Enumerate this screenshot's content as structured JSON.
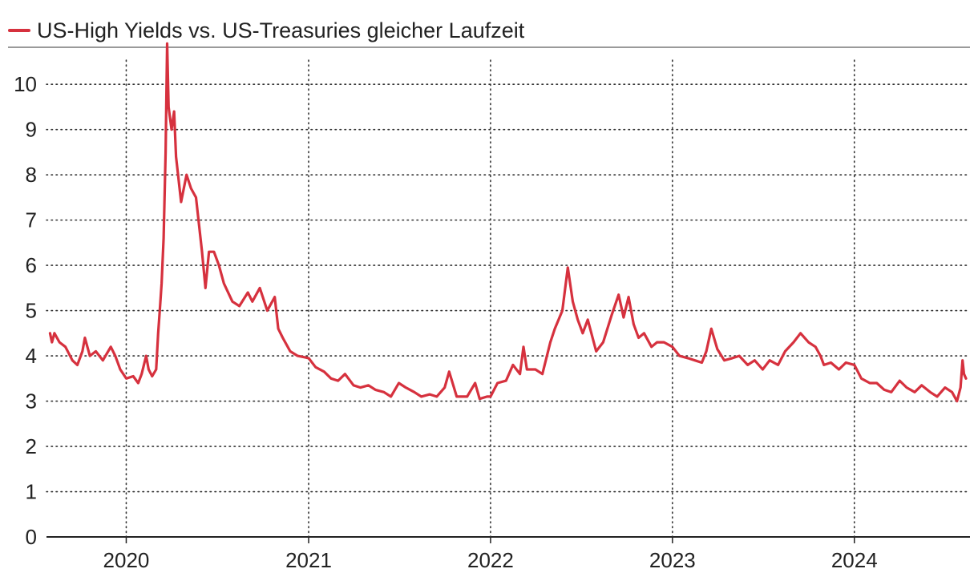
{
  "legend": {
    "label": "US-High Yields vs. US-Treasuries gleicher Laufzeit",
    "color": "#d6313e"
  },
  "chart_data": {
    "type": "line",
    "title": "",
    "xlabel": "",
    "ylabel": "",
    "ylim": [
      0,
      10.8
    ],
    "xlim": [
      "2019-07-25",
      "2024-08-20"
    ],
    "yticks": [
      0,
      1,
      2,
      3,
      4,
      5,
      6,
      7,
      8,
      9,
      10
    ],
    "yticklabels": [
      "0",
      "1",
      "2",
      "3",
      "4",
      "5",
      "6",
      "7",
      "8",
      "9",
      "10"
    ],
    "xticks": [
      "2020-01-01",
      "2021-01-01",
      "2022-01-01",
      "2023-01-01",
      "2024-01-01"
    ],
    "xticklabels": [
      "2020",
      "2021",
      "2022",
      "2023",
      "2024"
    ],
    "grid": "dotted",
    "legend_position": "top-left",
    "series": [
      {
        "name": "US-High Yields vs. US-Treasuries gleicher Laufzeit",
        "color": "#d6313e",
        "x": [
          "2019-08-01",
          "2019-08-05",
          "2019-08-10",
          "2019-08-20",
          "2019-09-01",
          "2019-09-15",
          "2019-09-25",
          "2019-10-05",
          "2019-10-10",
          "2019-10-20",
          "2019-11-01",
          "2019-11-15",
          "2019-12-01",
          "2019-12-10",
          "2019-12-20",
          "2020-01-01",
          "2020-01-15",
          "2020-01-25",
          "2020-02-01",
          "2020-02-10",
          "2020-02-15",
          "2020-02-22",
          "2020-03-01",
          "2020-03-05",
          "2020-03-09",
          "2020-03-12",
          "2020-03-16",
          "2020-03-20",
          "2020-03-23",
          "2020-03-26",
          "2020-04-01",
          "2020-04-06",
          "2020-04-10",
          "2020-04-20",
          "2020-05-01",
          "2020-05-10",
          "2020-05-20",
          "2020-06-01",
          "2020-06-08",
          "2020-06-15",
          "2020-06-25",
          "2020-07-05",
          "2020-07-15",
          "2020-08-01",
          "2020-08-15",
          "2020-09-01",
          "2020-09-10",
          "2020-09-25",
          "2020-10-10",
          "2020-10-25",
          "2020-11-01",
          "2020-11-10",
          "2020-11-25",
          "2020-12-10",
          "2021-01-01",
          "2021-01-15",
          "2021-02-01",
          "2021-02-15",
          "2021-03-01",
          "2021-03-15",
          "2021-04-01",
          "2021-04-15",
          "2021-05-01",
          "2021-05-15",
          "2021-06-01",
          "2021-06-15",
          "2021-07-01",
          "2021-07-15",
          "2021-08-01",
          "2021-08-15",
          "2021-09-01",
          "2021-09-15",
          "2021-10-01",
          "2021-10-10",
          "2021-10-25",
          "2021-11-15",
          "2021-12-01",
          "2021-12-10",
          "2021-12-25",
          "2022-01-01",
          "2022-01-15",
          "2022-02-01",
          "2022-02-15",
          "2022-03-01",
          "2022-03-08",
          "2022-03-15",
          "2022-04-01",
          "2022-04-15",
          "2022-05-01",
          "2022-05-10",
          "2022-05-25",
          "2022-06-05",
          "2022-06-15",
          "2022-06-25",
          "2022-07-05",
          "2022-07-15",
          "2022-08-01",
          "2022-08-15",
          "2022-09-01",
          "2022-09-15",
          "2022-09-25",
          "2022-10-05",
          "2022-10-15",
          "2022-10-25",
          "2022-11-05",
          "2022-11-20",
          "2022-12-01",
          "2022-12-15",
          "2023-01-01",
          "2023-01-15",
          "2023-02-01",
          "2023-02-15",
          "2023-03-01",
          "2023-03-10",
          "2023-03-20",
          "2023-04-01",
          "2023-04-15",
          "2023-05-01",
          "2023-05-15",
          "2023-06-01",
          "2023-06-15",
          "2023-07-01",
          "2023-07-15",
          "2023-08-01",
          "2023-08-15",
          "2023-09-01",
          "2023-09-15",
          "2023-10-01",
          "2023-10-15",
          "2023-10-25",
          "2023-11-01",
          "2023-11-15",
          "2023-12-01",
          "2023-12-15",
          "2024-01-01",
          "2024-01-15",
          "2024-02-01",
          "2024-02-15",
          "2024-03-01",
          "2024-03-15",
          "2024-04-01",
          "2024-04-15",
          "2024-05-01",
          "2024-05-15",
          "2024-06-01",
          "2024-06-15",
          "2024-07-01",
          "2024-07-15",
          "2024-07-25",
          "2024-08-01",
          "2024-08-05",
          "2024-08-08",
          "2024-08-12"
        ],
        "y": [
          4.5,
          4.3,
          4.5,
          4.3,
          4.2,
          3.9,
          3.8,
          4.1,
          4.4,
          4.0,
          4.1,
          3.9,
          4.2,
          4.0,
          3.7,
          3.5,
          3.55,
          3.4,
          3.6,
          4.0,
          3.7,
          3.55,
          3.7,
          4.5,
          5.1,
          5.6,
          6.6,
          8.5,
          10.9,
          9.5,
          9.0,
          9.4,
          8.4,
          7.4,
          8.0,
          7.7,
          7.5,
          6.3,
          5.5,
          6.3,
          6.3,
          6.0,
          5.6,
          5.2,
          5.1,
          5.4,
          5.2,
          5.5,
          5.0,
          5.3,
          4.6,
          4.4,
          4.1,
          4.0,
          3.95,
          3.75,
          3.65,
          3.5,
          3.45,
          3.6,
          3.35,
          3.3,
          3.35,
          3.25,
          3.2,
          3.1,
          3.4,
          3.3,
          3.2,
          3.1,
          3.15,
          3.1,
          3.3,
          3.65,
          3.1,
          3.1,
          3.4,
          3.05,
          3.1,
          3.1,
          3.4,
          3.45,
          3.8,
          3.6,
          4.2,
          3.7,
          3.7,
          3.6,
          4.3,
          4.6,
          5.0,
          5.95,
          5.2,
          4.8,
          4.5,
          4.8,
          4.1,
          4.3,
          4.9,
          5.35,
          4.85,
          5.3,
          4.7,
          4.4,
          4.5,
          4.2,
          4.3,
          4.3,
          4.2,
          4.0,
          3.95,
          3.9,
          3.85,
          4.1,
          4.6,
          4.15,
          3.9,
          3.95,
          4.0,
          3.8,
          3.9,
          3.7,
          3.9,
          3.8,
          4.1,
          4.3,
          4.5,
          4.3,
          4.2,
          4.0,
          3.8,
          3.85,
          3.7,
          3.85,
          3.8,
          3.5,
          3.4,
          3.4,
          3.25,
          3.2,
          3.45,
          3.3,
          3.2,
          3.35,
          3.2,
          3.1,
          3.3,
          3.2,
          3.0,
          3.3,
          3.9,
          3.6,
          3.5
        ]
      }
    ]
  }
}
